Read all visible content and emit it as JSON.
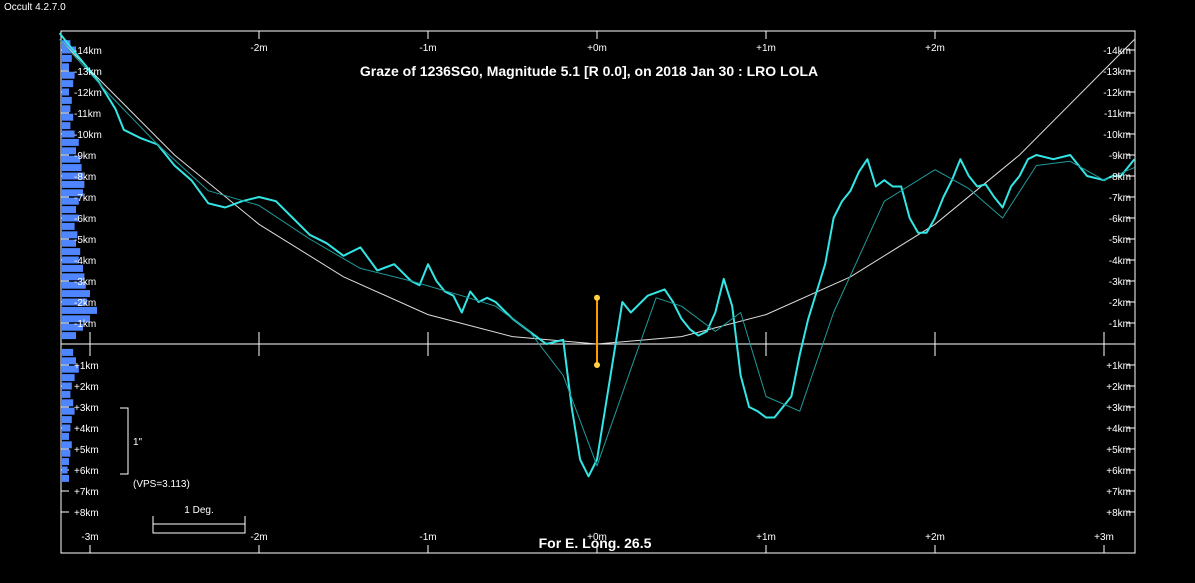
{
  "window": {
    "title": "Occult 4.2.7.0"
  },
  "chart_data": {
    "type": "line",
    "title": "Graze of  1236SG0,  Magnitude 5.1 [R 0.0],  on 2018 Jan 30  :  LRO LOLA",
    "footer": "For E. Long. 26.5",
    "x_unit": "m",
    "y_unit": "km",
    "xlim": [
      -3.18,
      3.18
    ],
    "ylim": [
      -14.5,
      10
    ],
    "x_ticks_top": [
      {
        "v": -2,
        "label": "-2m"
      },
      {
        "v": -1,
        "label": "-1m"
      },
      {
        "v": 0,
        "label": "+0m"
      },
      {
        "v": 1,
        "label": "+1m"
      },
      {
        "v": 2,
        "label": "+2m"
      }
    ],
    "x_ticks_bottom": [
      {
        "v": -3,
        "label": "-3m"
      },
      {
        "v": -2,
        "label": "-2m"
      },
      {
        "v": -1,
        "label": "-1m"
      },
      {
        "v": 0,
        "label": "+0m"
      },
      {
        "v": 1,
        "label": "+1m"
      },
      {
        "v": 2,
        "label": "+2m"
      },
      {
        "v": 3,
        "label": "+3m"
      }
    ],
    "y_ticks": [
      {
        "v": -14,
        "label": "-14km"
      },
      {
        "v": -13,
        "label": "-13km"
      },
      {
        "v": -12,
        "label": "-12km"
      },
      {
        "v": -11,
        "label": "-11km"
      },
      {
        "v": -10,
        "label": "-10km"
      },
      {
        "v": -9,
        "label": "-9km"
      },
      {
        "v": -8,
        "label": "-8km"
      },
      {
        "v": -7,
        "label": "-7km"
      },
      {
        "v": -6,
        "label": "-6km"
      },
      {
        "v": -5,
        "label": "-5km"
      },
      {
        "v": -4,
        "label": "-4km"
      },
      {
        "v": -3,
        "label": "-3km"
      },
      {
        "v": -2,
        "label": "-2km"
      },
      {
        "v": -1,
        "label": "-1km"
      },
      {
        "v": 1,
        "label": "+1km"
      },
      {
        "v": 2,
        "label": "+2km"
      },
      {
        "v": 3,
        "label": "+3km"
      },
      {
        "v": 4,
        "label": "+4km"
      },
      {
        "v": 5,
        "label": "+5km"
      },
      {
        "v": 6,
        "label": "+6km"
      },
      {
        "v": 7,
        "label": "+7km"
      },
      {
        "v": 8,
        "label": "+8km"
      }
    ],
    "reference_limb": {
      "color": "#dddddd",
      "x": [
        -3.18,
        -2.5,
        -2.0,
        -1.5,
        -1.0,
        -0.5,
        0,
        0.5,
        1.0,
        1.5,
        2.0,
        2.5,
        3.18
      ],
      "y": [
        -14.5,
        -9.0,
        -5.7,
        -3.2,
        -1.4,
        -0.35,
        0,
        -0.35,
        -1.4,
        -3.2,
        -5.7,
        -9.0,
        -14.5
      ]
    },
    "series": [
      {
        "color": "#33e6e6",
        "x": [
          -3.18,
          -3.05,
          -2.95,
          -2.85,
          -2.8,
          -2.7,
          -2.6,
          -2.5,
          -2.4,
          -2.3,
          -2.2,
          -2.1,
          -2.0,
          -1.9,
          -1.8,
          -1.7,
          -1.6,
          -1.5,
          -1.4,
          -1.3,
          -1.2,
          -1.1,
          -1.05,
          -1.0,
          -0.95,
          -0.9,
          -0.85,
          -0.8,
          -0.75,
          -0.7,
          -0.65,
          -0.6,
          -0.55,
          -0.5,
          -0.4,
          -0.3,
          -0.2,
          -0.15,
          -0.1,
          -0.05,
          0,
          0.05,
          0.1,
          0.15,
          0.2,
          0.3,
          0.4,
          0.45,
          0.5,
          0.55,
          0.6,
          0.65,
          0.7,
          0.75,
          0.8,
          0.85,
          0.9,
          0.95,
          1.0,
          1.05,
          1.1,
          1.15,
          1.2,
          1.25,
          1.3,
          1.35,
          1.4,
          1.45,
          1.5,
          1.55,
          1.6,
          1.65,
          1.7,
          1.75,
          1.8,
          1.85,
          1.9,
          1.95,
          2.0,
          2.05,
          2.1,
          2.15,
          2.2,
          2.25,
          2.3,
          2.35,
          2.4,
          2.45,
          2.5,
          2.55,
          2.6,
          2.7,
          2.8,
          2.9,
          3.0,
          3.05,
          3.1,
          3.18
        ],
        "y": [
          -14.8,
          -13.5,
          -12.5,
          -11.2,
          -10.2,
          -9.8,
          -9.5,
          -8.5,
          -7.8,
          -6.7,
          -6.5,
          -6.8,
          -7.0,
          -6.8,
          -6.0,
          -5.2,
          -4.8,
          -4.2,
          -4.6,
          -3.5,
          -3.8,
          -3.0,
          -2.8,
          -3.8,
          -3.0,
          -2.5,
          -2.3,
          -1.5,
          -2.5,
          -2.0,
          -2.2,
          -2.0,
          -1.6,
          -1.2,
          -0.6,
          0.0,
          -0.2,
          3.0,
          5.5,
          6.3,
          5.5,
          3.0,
          0.5,
          -2.0,
          -1.5,
          -2.3,
          -2.6,
          -2.0,
          -1.2,
          -0.7,
          -0.4,
          -0.6,
          -1.5,
          -3.1,
          -1.8,
          1.5,
          3.0,
          3.2,
          3.5,
          3.5,
          3.0,
          2.5,
          0.5,
          -1.2,
          -2.5,
          -3.8,
          -6.0,
          -6.8,
          -7.3,
          -8.2,
          -8.8,
          -7.5,
          -7.8,
          -7.5,
          -7.5,
          -6.0,
          -5.3,
          -5.3,
          -6.0,
          -7.0,
          -7.8,
          -8.8,
          -8.0,
          -7.5,
          -7.6,
          -7.0,
          -6.5,
          -7.5,
          -8.0,
          -8.8,
          -9.0,
          -8.8,
          -9.0,
          -8.0,
          -7.8,
          -8.0,
          -8.0,
          -8.8
        ]
      },
      {
        "color": "#1f9a9a",
        "x": [
          -3.18,
          -2.9,
          -2.6,
          -2.3,
          -2.0,
          -1.7,
          -1.4,
          -1.1,
          -0.8,
          -0.6,
          -0.4,
          -0.2,
          0,
          0.2,
          0.35,
          0.5,
          0.7,
          0.85,
          1.0,
          1.2,
          1.4,
          1.7,
          2.0,
          2.2,
          2.4,
          2.6,
          2.8,
          3.0,
          3.18
        ],
        "y": [
          -14.5,
          -12.0,
          -9.5,
          -7.3,
          -6.6,
          -5.0,
          -3.6,
          -3.0,
          -2.3,
          -1.8,
          -0.6,
          1.5,
          5.8,
          1.2,
          -2.2,
          -1.8,
          -0.6,
          -1.5,
          2.5,
          3.2,
          -1.5,
          -6.8,
          -8.3,
          -7.4,
          -6.0,
          -8.5,
          -8.7,
          -7.8,
          -8.4
        ]
      }
    ],
    "event_marker": {
      "color": "#ff9900",
      "x": 0,
      "y_top": -2.2,
      "y_bottom": 1.0
    },
    "side_histogram": {
      "color": "#4f86ff",
      "y": [
        -14.3,
        -14.0,
        -13.6,
        -13.2,
        -12.8,
        -12.4,
        -12.0,
        -11.6,
        -11.2,
        -10.8,
        -10.4,
        -10.0,
        -9.6,
        -9.2,
        -8.8,
        -8.4,
        -8.0,
        -7.6,
        -7.2,
        -6.8,
        -6.4,
        -6.0,
        -5.6,
        -5.2,
        -4.8,
        -4.4,
        -4.0,
        -3.6,
        -3.2,
        -2.8,
        -2.4,
        -2.0,
        -1.6,
        -1.2,
        -0.8,
        -0.4,
        0.4,
        0.8,
        1.2,
        1.6,
        2.0,
        2.4,
        2.8,
        3.2,
        3.6,
        4.0,
        4.4,
        4.8,
        5.2,
        5.6,
        6.0,
        6.4
      ],
      "values": [
        0.06,
        0.1,
        0.07,
        0.05,
        0.09,
        0.08,
        0.05,
        0.07,
        0.06,
        0.08,
        0.06,
        0.09,
        0.12,
        0.1,
        0.13,
        0.14,
        0.15,
        0.16,
        0.15,
        0.12,
        0.1,
        0.12,
        0.09,
        0.11,
        0.1,
        0.13,
        0.12,
        0.15,
        0.16,
        0.17,
        0.2,
        0.18,
        0.25,
        0.2,
        0.15,
        0.1,
        0.08,
        0.1,
        0.12,
        0.09,
        0.07,
        0.06,
        0.08,
        0.09,
        0.07,
        0.06,
        0.05,
        0.07,
        0.06,
        0.05,
        0.04,
        0.05
      ]
    },
    "scale_annotations": {
      "vertical_label": "1\"",
      "vps_label": "(VPS=3.113)",
      "horizontal_label": "1 Deg."
    }
  }
}
